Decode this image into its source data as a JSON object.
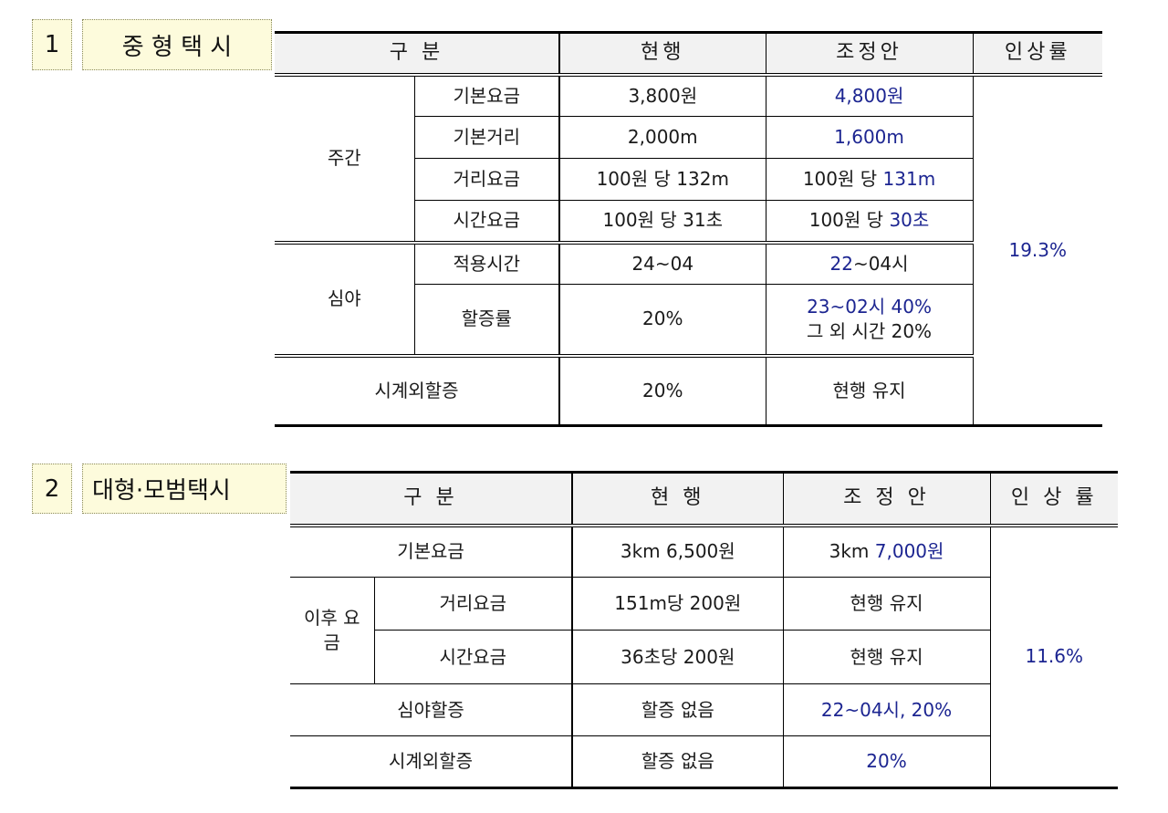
{
  "section1": {
    "number": "1",
    "title": "중 형 택 시",
    "headers": [
      "구 분",
      "현행",
      "조정안",
      "인상률"
    ],
    "rows": {
      "day_label": "주간",
      "night_label": "심야",
      "base_fare": {
        "item": "기본요금",
        "current": "3,800원",
        "proposed": "4,800원"
      },
      "base_distance": {
        "item": "기본거리",
        "current": "2,000m",
        "proposed": "1,600m"
      },
      "distance_fare": {
        "item": "거리요금",
        "current": "100원 당 132m",
        "proposed_prefix": "100원 당 ",
        "proposed_value": "131m"
      },
      "time_fare": {
        "item": "시간요금",
        "current": "100원 당 31초",
        "proposed_prefix": "100원 당 ",
        "proposed_value": "30초"
      },
      "night_hours": {
        "item": "적용시간",
        "current": "24~04",
        "proposed_value": "22",
        "proposed_suffix": "~04시"
      },
      "night_surcharge": {
        "item": "할증률",
        "current": "20%",
        "proposed_line1": "23~02시 40%",
        "proposed_line2": "그 외 시간 20%"
      },
      "out_of_area": {
        "item": "시계외할증",
        "current": "20%",
        "proposed": "현행 유지"
      }
    },
    "increase_rate": "19.3%"
  },
  "section2": {
    "number": "2",
    "title": "대형·모범택시",
    "headers": [
      "구 분",
      "현 행",
      "조 정 안",
      "인 상 률"
    ],
    "rows": {
      "base_fare": {
        "item": "기본요금",
        "current": "3km 6,500원",
        "proposed_prefix": "3km ",
        "proposed_value": "7,000원"
      },
      "after_label": "이후 요금",
      "distance_fare": {
        "item": "거리요금",
        "current": "151m당 200원",
        "proposed": "현행 유지"
      },
      "time_fare": {
        "item": "시간요금",
        "current": "36초당 200원",
        "proposed": "현행 유지"
      },
      "night_surcharge": {
        "item": "심야할증",
        "current": "할증 없음",
        "proposed": "22~04시, 20%"
      },
      "out_of_area": {
        "item": "시계외할증",
        "current": "할증 없음",
        "proposed": "20%"
      }
    },
    "increase_rate": "11.6%"
  },
  "colors": {
    "accent_blue": "#1c2591",
    "label_bg": "#fdfbdc",
    "header_bg": "#f2f2f2"
  }
}
